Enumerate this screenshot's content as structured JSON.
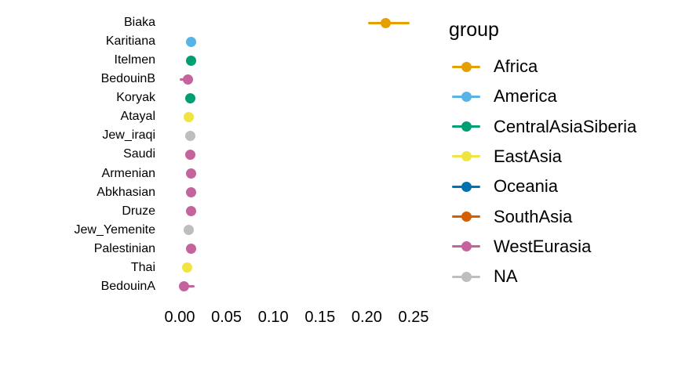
{
  "chart_data": {
    "type": "scatter",
    "mark": "pointrange",
    "orientation": "horizontal",
    "title": "",
    "xlabel": "",
    "ylabel": "",
    "xlim": [
      -0.005,
      0.27
    ],
    "x_ticks": [
      0.0,
      0.05,
      0.1,
      0.15,
      0.2,
      0.25
    ],
    "x_tick_labels": [
      "0.00",
      "0.05",
      "0.10",
      "0.15",
      "0.20",
      "0.25"
    ],
    "grid": false,
    "axis_lines": false,
    "legend_position": "right",
    "legend": {
      "title": "group",
      "entries": [
        {
          "label": "Africa",
          "color": "#E69F00"
        },
        {
          "label": "America",
          "color": "#56B4E9"
        },
        {
          "label": "CentralAsiaSiberia",
          "color": "#009E73"
        },
        {
          "label": "EastAsia",
          "color": "#F0E442"
        },
        {
          "label": "Oceania",
          "color": "#0072B2"
        },
        {
          "label": "SouthAsia",
          "color": "#D55E00"
        },
        {
          "label": "WestEurasia",
          "color": "#C4639C"
        },
        {
          "label": "NA",
          "color": "#BEBEBE"
        }
      ]
    },
    "points": [
      {
        "population": "Biaka",
        "group": "Africa",
        "value": 0.22,
        "low": 0.201,
        "high": 0.246
      },
      {
        "population": "Karitiana",
        "group": "America",
        "value": 0.012,
        "low": 0.012,
        "high": 0.012
      },
      {
        "population": "Itelmen",
        "group": "CentralAsiaSiberia",
        "value": 0.012,
        "low": 0.012,
        "high": 0.012
      },
      {
        "population": "BedouinB",
        "group": "WestEurasia",
        "value": 0.009,
        "low": 0.0,
        "high": 0.014
      },
      {
        "population": "Koryak",
        "group": "CentralAsiaSiberia",
        "value": 0.011,
        "low": 0.011,
        "high": 0.011
      },
      {
        "population": "Atayal",
        "group": "EastAsia",
        "value": 0.01,
        "low": 0.01,
        "high": 0.01
      },
      {
        "population": "Jew_iraqi",
        "group": "NA",
        "value": 0.011,
        "low": 0.011,
        "high": 0.011
      },
      {
        "population": "Saudi",
        "group": "WestEurasia",
        "value": 0.011,
        "low": 0.011,
        "high": 0.011
      },
      {
        "population": "Armenian",
        "group": "WestEurasia",
        "value": 0.012,
        "low": 0.012,
        "high": 0.012
      },
      {
        "population": "Abkhasian",
        "group": "WestEurasia",
        "value": 0.012,
        "low": 0.012,
        "high": 0.012
      },
      {
        "population": "Druze",
        "group": "WestEurasia",
        "value": 0.012,
        "low": 0.012,
        "high": 0.012
      },
      {
        "population": "Jew_Yemenite",
        "group": "NA",
        "value": 0.01,
        "low": 0.01,
        "high": 0.01
      },
      {
        "population": "Palestinian",
        "group": "WestEurasia",
        "value": 0.012,
        "low": 0.012,
        "high": 0.012
      },
      {
        "population": "Thai",
        "group": "EastAsia",
        "value": 0.008,
        "low": 0.008,
        "high": 0.008
      },
      {
        "population": "BedouinA",
        "group": "WestEurasia",
        "value": 0.005,
        "low": 0.001,
        "high": 0.016
      }
    ]
  }
}
